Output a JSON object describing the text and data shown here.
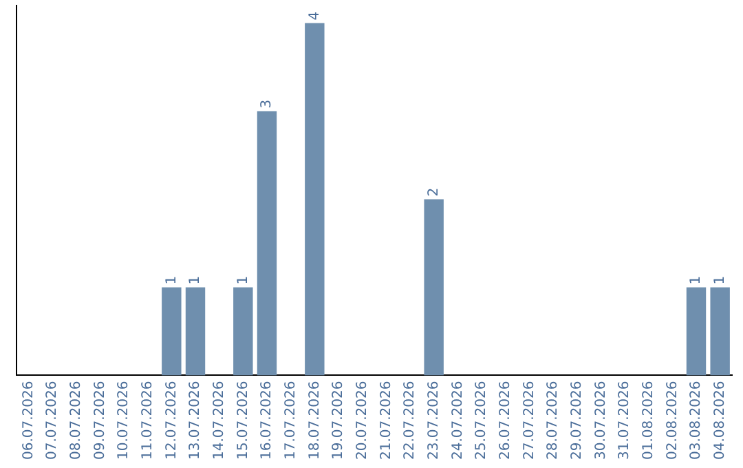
{
  "chart_data": {
    "type": "bar",
    "categories": [
      "06.07.2026",
      "07.07.2026",
      "08.07.2026",
      "09.07.2026",
      "10.07.2026",
      "11.07.2026",
      "12.07.2026",
      "13.07.2026",
      "14.07.2026",
      "15.07.2026",
      "16.07.2026",
      "17.07.2026",
      "18.07.2026",
      "19.07.2026",
      "20.07.2026",
      "21.07.2026",
      "22.07.2026",
      "23.07.2026",
      "24.07.2026",
      "25.07.2026",
      "26.07.2026",
      "27.07.2026",
      "28.07.2026",
      "29.07.2026",
      "30.07.2026",
      "31.07.2026",
      "01.08.2026",
      "02.08.2026",
      "03.08.2026",
      "04.08.2026"
    ],
    "values": [
      0,
      0,
      0,
      0,
      0,
      0,
      1,
      1,
      0,
      1,
      3,
      0,
      4,
      0,
      0,
      0,
      0,
      2,
      0,
      0,
      0,
      0,
      0,
      0,
      0,
      0,
      0,
      0,
      1,
      1
    ],
    "value_labels": [
      null,
      null,
      null,
      null,
      null,
      null,
      "1",
      "1",
      null,
      "1",
      "3",
      null,
      "4",
      null,
      null,
      null,
      null,
      "2",
      null,
      null,
      null,
      null,
      null,
      null,
      null,
      null,
      null,
      null,
      "1",
      "1"
    ],
    "color": "#6f8fae",
    "ylim": [
      0,
      4.2
    ],
    "tick_labels": "x",
    "grid": false,
    "legend": false
  }
}
